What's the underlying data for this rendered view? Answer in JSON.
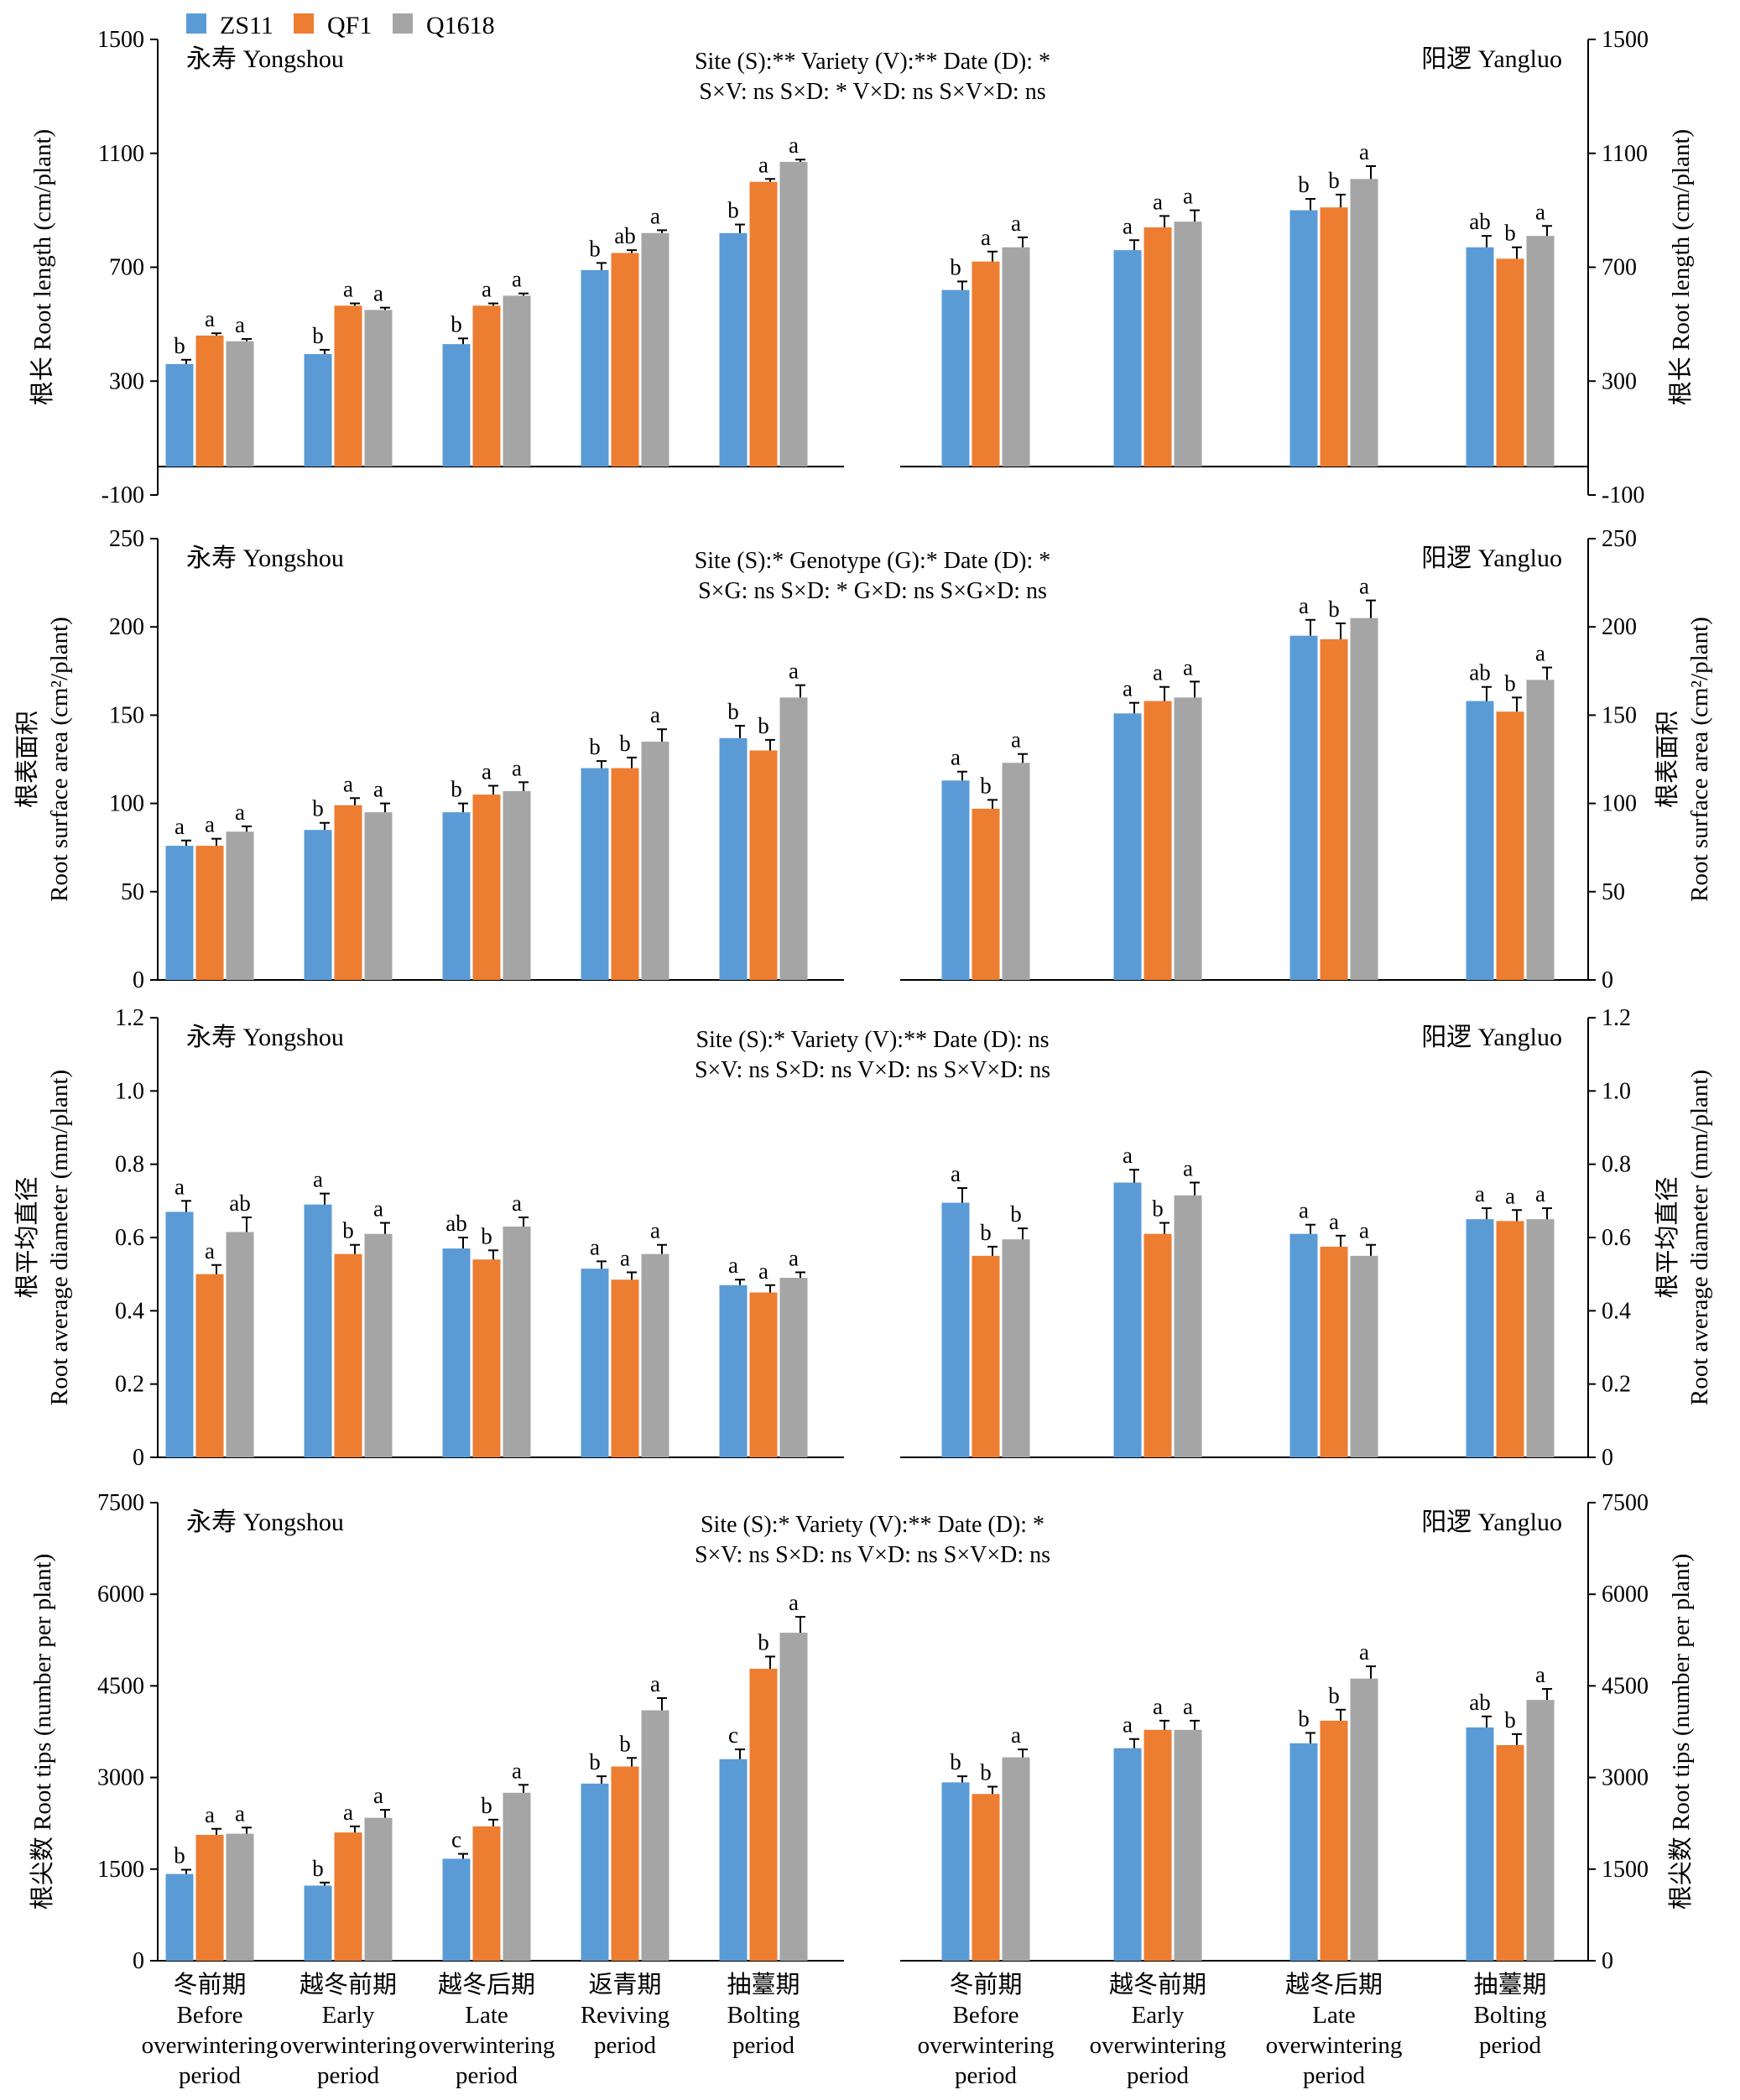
{
  "legend": [
    {
      "name": "ZS11",
      "color": "#5b9bd5"
    },
    {
      "name": "QF1",
      "color": "#ed7d31"
    },
    {
      "name": "Q1618",
      "color": "#a5a5a5"
    }
  ],
  "sites": {
    "left": "永寿 Yongshou",
    "right": "阳逻 Yangluo"
  },
  "x_categories_left": [
    {
      "cn": "冬前期",
      "en": [
        "Before",
        "overwintering",
        "period"
      ]
    },
    {
      "cn": "越冬前期",
      "en": [
        "Early",
        "overwintering",
        "period"
      ]
    },
    {
      "cn": "越冬后期",
      "en": [
        "Late",
        "overwintering",
        "period"
      ]
    },
    {
      "cn": "返青期",
      "en": [
        "Reviving",
        "period"
      ]
    },
    {
      "cn": "抽薹期",
      "en": [
        "Bolting",
        "period"
      ]
    }
  ],
  "x_categories_right": [
    {
      "cn": "冬前期",
      "en": [
        "Before",
        "overwintering",
        "period"
      ]
    },
    {
      "cn": "越冬前期",
      "en": [
        "Early",
        "overwintering",
        "period"
      ]
    },
    {
      "cn": "越冬后期",
      "en": [
        "Late",
        "overwintering",
        "period"
      ]
    },
    {
      "cn": "抽薹期",
      "en": [
        "Bolting",
        "period"
      ]
    }
  ],
  "chart_data": [
    {
      "type": "bar",
      "ylabel": "根长 Root length (cm/plant)",
      "ylabel_lines": [
        {
          "text": "根长 Root length (cm/plant)"
        }
      ],
      "ylim": [
        -100,
        1500
      ],
      "yticks": [
        -100,
        300,
        700,
        1100,
        1500
      ],
      "stats": [
        "Site (S):**  Variety (V):**  Date (D): *",
        "S×V: ns   S×D: *   V×D: ns   S×V×D: ns"
      ],
      "left": {
        "values": [
          [
            360,
            460,
            440
          ],
          [
            395,
            565,
            550
          ],
          [
            430,
            565,
            600
          ],
          [
            690,
            750,
            820
          ],
          [
            820,
            1000,
            1070
          ]
        ],
        "errors": [
          [
            15,
            8,
            8
          ],
          [
            15,
            8,
            8
          ],
          [
            20,
            8,
            8
          ],
          [
            25,
            10,
            10
          ],
          [
            30,
            10,
            8
          ]
        ],
        "letters": [
          [
            "b",
            "a",
            "a"
          ],
          [
            "b",
            "a",
            "a"
          ],
          [
            "b",
            "a",
            "a"
          ],
          [
            "b",
            "ab",
            "a"
          ],
          [
            "b",
            "a",
            "a"
          ]
        ]
      },
      "right": {
        "yticks": [
          -100,
          300,
          700,
          1100,
          1500
        ],
        "ylim": [
          -100,
          1500
        ],
        "values": [
          [
            620,
            720,
            770
          ],
          [
            760,
            840,
            860
          ],
          [
            900,
            910,
            1010
          ],
          [
            770,
            730,
            810
          ]
        ],
        "errors": [
          [
            30,
            35,
            35
          ],
          [
            35,
            40,
            40
          ],
          [
            40,
            45,
            45
          ],
          [
            40,
            40,
            35
          ]
        ],
        "letters": [
          [
            "b",
            "a",
            "a"
          ],
          [
            "a",
            "a",
            "a"
          ],
          [
            "b",
            "b",
            "a"
          ],
          [
            "ab",
            "b",
            "a"
          ]
        ]
      }
    },
    {
      "type": "bar",
      "ylabel": "根表面积 Root surface area (cm²/plant)",
      "ylabel_lines": [
        {
          "text": "根表面积"
        },
        {
          "text": "Root surface area (cm²/plant)"
        }
      ],
      "ylim": [
        0,
        250
      ],
      "yticks": [
        0,
        50,
        100,
        150,
        200,
        250
      ],
      "stats": [
        "Site (S):* Genotype (G):*  Date (D): *",
        "S×G: ns   S×D: *   G×D: ns   S×G×D: ns"
      ],
      "left": {
        "values": [
          [
            76,
            76,
            84
          ],
          [
            85,
            99,
            95
          ],
          [
            95,
            105,
            107
          ],
          [
            120,
            120,
            135
          ],
          [
            137,
            130,
            160
          ]
        ],
        "errors": [
          [
            3,
            4,
            3
          ],
          [
            4,
            4,
            5
          ],
          [
            5,
            5,
            5
          ],
          [
            4,
            6,
            7
          ],
          [
            7,
            6,
            7
          ]
        ],
        "letters": [
          [
            "a",
            "a",
            "a"
          ],
          [
            "b",
            "a",
            "a"
          ],
          [
            "b",
            "a",
            "a"
          ],
          [
            "b",
            "b",
            "a"
          ],
          [
            "b",
            "b",
            "a"
          ]
        ]
      },
      "right": {
        "yticks": [
          0,
          50,
          100,
          150,
          200,
          250
        ],
        "ylim": [
          0,
          250
        ],
        "values": [
          [
            113,
            97,
            123
          ],
          [
            151,
            158,
            160
          ],
          [
            195,
            193,
            205
          ],
          [
            158,
            152,
            170
          ]
        ],
        "errors": [
          [
            5,
            5,
            5
          ],
          [
            6,
            8,
            9
          ],
          [
            9,
            9,
            10
          ],
          [
            8,
            8,
            7
          ]
        ],
        "letters": [
          [
            "a",
            "b",
            "a"
          ],
          [
            "a",
            "a",
            "a"
          ],
          [
            "a",
            "b",
            "a"
          ],
          [
            "ab",
            "b",
            "a"
          ]
        ]
      }
    },
    {
      "type": "bar",
      "ylabel": "根平均直径 Root average diameter (mm/plant)",
      "ylabel_lines": [
        {
          "text": "根平均直径"
        },
        {
          "text": "Root average diameter (mm/plant)"
        }
      ],
      "ylim": [
        0,
        1.2
      ],
      "yticks": [
        0,
        0.2,
        0.4,
        0.6,
        0.8,
        1.0,
        1.2
      ],
      "stats": [
        "Site (S):* Variety (V):**  Date (D): ns",
        "S×V: ns   S×D: ns   V×D: ns   S×V×D: ns"
      ],
      "left": {
        "values": [
          [
            0.67,
            0.5,
            0.615
          ],
          [
            0.69,
            0.555,
            0.61
          ],
          [
            0.57,
            0.54,
            0.63
          ],
          [
            0.515,
            0.485,
            0.555
          ],
          [
            0.47,
            0.45,
            0.49
          ]
        ],
        "errors": [
          [
            0.03,
            0.025,
            0.04
          ],
          [
            0.03,
            0.025,
            0.03
          ],
          [
            0.03,
            0.025,
            0.025
          ],
          [
            0.02,
            0.02,
            0.025
          ],
          [
            0.015,
            0.02,
            0.015
          ]
        ],
        "letters": [
          [
            "a",
            "a",
            "ab"
          ],
          [
            "a",
            "b",
            "a"
          ],
          [
            "ab",
            "b",
            "a"
          ],
          [
            "a",
            "a",
            "a"
          ],
          [
            "a",
            "a",
            "a"
          ]
        ]
      },
      "right": {
        "yticks": [
          0,
          0.2,
          0.4,
          0.6,
          0.8,
          1.0,
          1.2
        ],
        "ylim": [
          0,
          1.2
        ],
        "values": [
          [
            0.695,
            0.55,
            0.595
          ],
          [
            0.75,
            0.61,
            0.715
          ],
          [
            0.61,
            0.575,
            0.55
          ],
          [
            0.65,
            0.645,
            0.65
          ]
        ],
        "errors": [
          [
            0.04,
            0.025,
            0.03
          ],
          [
            0.035,
            0.03,
            0.035
          ],
          [
            0.025,
            0.03,
            0.03
          ],
          [
            0.03,
            0.03,
            0.03
          ]
        ],
        "letters": [
          [
            "a",
            "b",
            "b"
          ],
          [
            "a",
            "b",
            "a"
          ],
          [
            "a",
            "a",
            "a"
          ],
          [
            "a",
            "a",
            "a"
          ]
        ]
      }
    },
    {
      "type": "bar",
      "ylabel": "根尖数 Root tips (number per plant)",
      "ylabel_lines": [
        {
          "text": "根尖数 Root tips (number per plant)"
        }
      ],
      "ylim": [
        0,
        7500
      ],
      "yticks": [
        0,
        1500,
        3000,
        4500,
        6000,
        7500
      ],
      "stats": [
        "Site (S):* Variety (V):**  Date (D): *",
        "S×V: ns   S×D: ns   V×D: ns   S×V×D: ns"
      ],
      "left": {
        "values": [
          [
            1420,
            2060,
            2080
          ],
          [
            1230,
            2100,
            2340
          ],
          [
            1670,
            2200,
            2750
          ],
          [
            2900,
            3180,
            4100
          ],
          [
            3300,
            4780,
            5370
          ]
        ],
        "errors": [
          [
            70,
            100,
            100
          ],
          [
            50,
            100,
            130
          ],
          [
            80,
            110,
            130
          ],
          [
            120,
            140,
            200
          ],
          [
            160,
            200,
            260
          ]
        ],
        "letters": [
          [
            "b",
            "a",
            "a"
          ],
          [
            "b",
            "a",
            "a"
          ],
          [
            "c",
            "b",
            "a"
          ],
          [
            "b",
            "b",
            "a"
          ],
          [
            "c",
            "b",
            "a"
          ]
        ]
      },
      "right": {
        "yticks": [
          0,
          1500,
          3000,
          4500,
          6000,
          7500
        ],
        "ylim": [
          0,
          7500
        ],
        "values": [
          [
            2920,
            2730,
            3330
          ],
          [
            3480,
            3780,
            3780
          ],
          [
            3560,
            3930,
            4620
          ],
          [
            3820,
            3530,
            4270
          ]
        ],
        "errors": [
          [
            100,
            120,
            130
          ],
          [
            150,
            150,
            150
          ],
          [
            170,
            180,
            200
          ],
          [
            180,
            180,
            180
          ]
        ],
        "letters": [
          [
            "b",
            "b",
            "a"
          ],
          [
            "a",
            "a",
            "a"
          ],
          [
            "b",
            "b",
            "a"
          ],
          [
            "ab",
            "b",
            "a"
          ]
        ]
      }
    }
  ]
}
